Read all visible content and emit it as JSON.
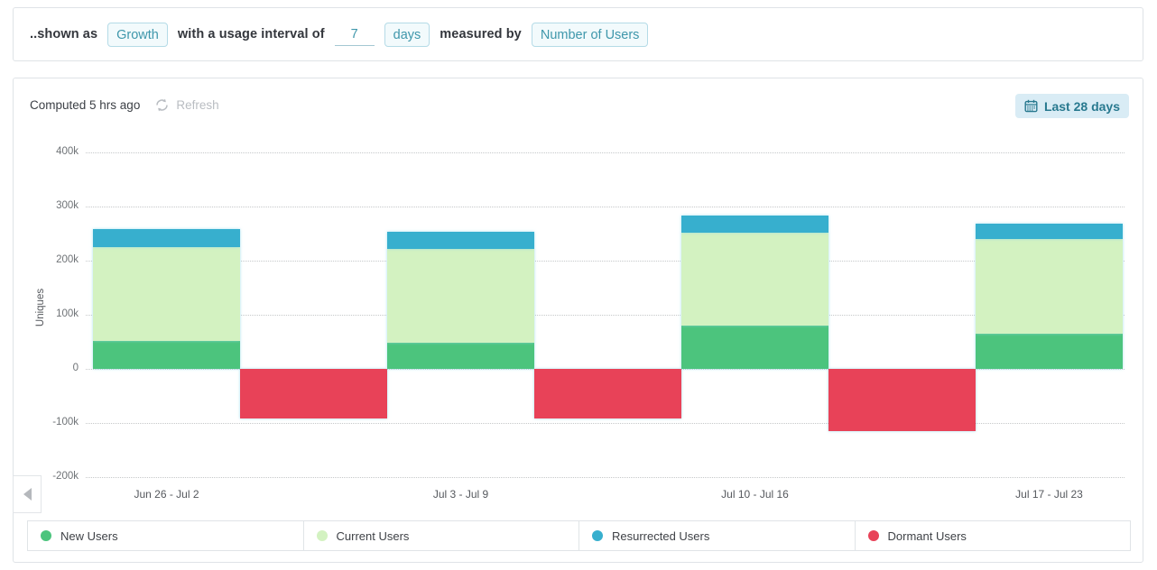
{
  "filter_bar": {
    "prefix": "..shown as",
    "shown_as_button": "Growth",
    "interval_text": "with a usage interval of",
    "interval_value": "7",
    "interval_unit_button": "days",
    "measured_by_text": "measured by",
    "metric_button": "Number of Users"
  },
  "panel": {
    "computed_text": "Computed 5 hrs ago",
    "refresh_label": "Refresh",
    "date_range_label": "Last 28 days"
  },
  "chart_data": {
    "type": "bar",
    "stacked": true,
    "ylabel": "Uniques",
    "categories": [
      "Jun 26 - Jul 2",
      "Jul 3 - Jul 9",
      "Jul 10 - Jul 16",
      "Jul 17 - Jul 23"
    ],
    "series": [
      {
        "name": "New Users",
        "color": "#4cc47d",
        "values": [
          52000,
          48000,
          80000,
          65000
        ]
      },
      {
        "name": "Current Users",
        "color": "#d3f2c1",
        "values": [
          173000,
          173000,
          172000,
          175000
        ]
      },
      {
        "name": "Resurrected Users",
        "color": "#37afce",
        "values": [
          33000,
          33000,
          32000,
          28000
        ]
      },
      {
        "name": "Dormant Users",
        "color": "#e84258",
        "values": [
          -92000,
          -92000,
          -115000,
          null
        ]
      }
    ],
    "yticks": [
      400000,
      300000,
      200000,
      100000,
      0,
      -100000,
      -200000
    ],
    "ytick_labels": [
      "400k",
      "300k",
      "200k",
      "100k",
      "0",
      "-100k",
      "-200k"
    ],
    "ylim": [
      -200000,
      400000
    ],
    "grid": "dotted horizontal",
    "legend_position": "bottom",
    "layout_hint": "dormant bar of each period is drawn in the half-slot immediately right of that period's positive stack"
  },
  "colors": {
    "accent_teal": "#3f97ab",
    "pill_border": "#b5dbe7",
    "pill_bg": "#f2fafc",
    "date_btn_bg": "#d9ecf5",
    "date_btn_text": "#28798f"
  }
}
